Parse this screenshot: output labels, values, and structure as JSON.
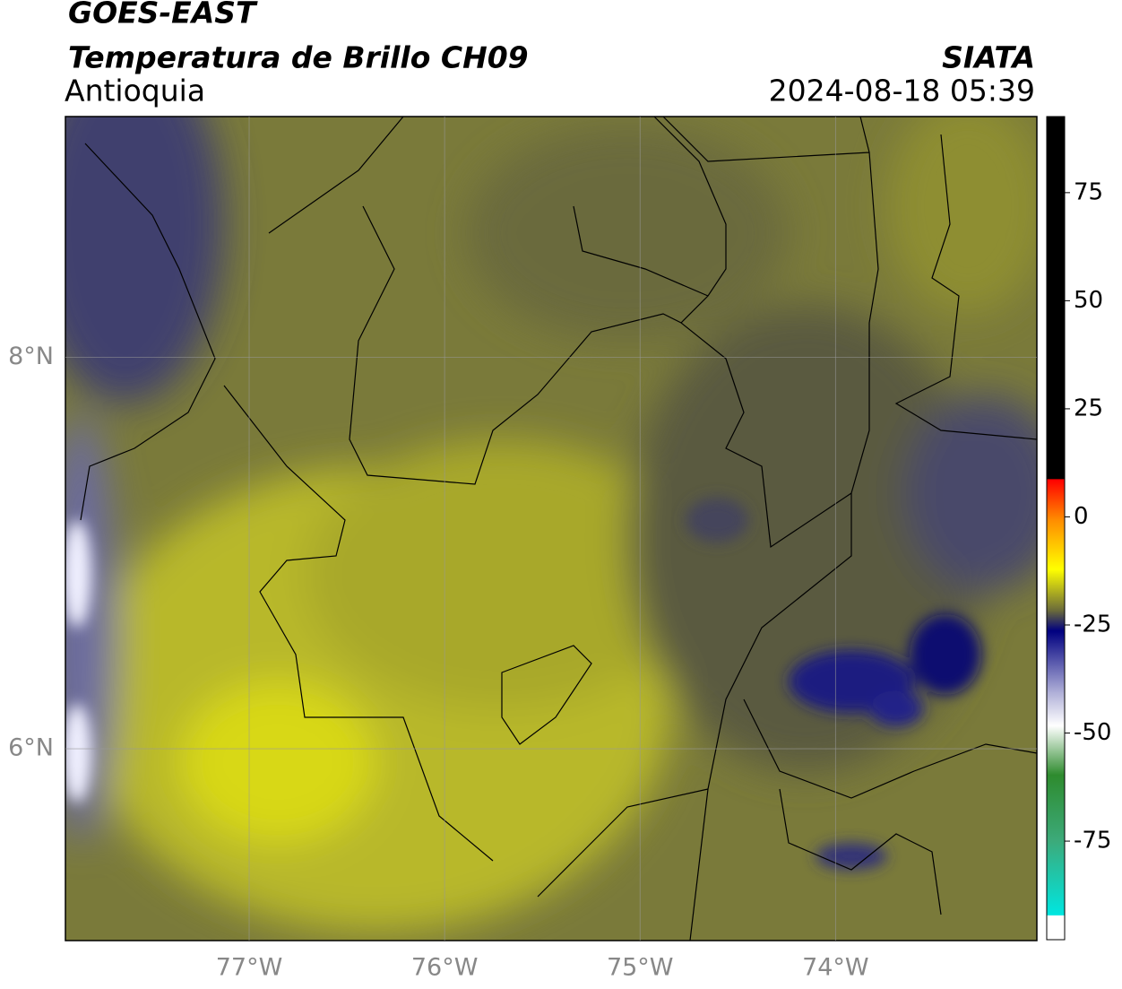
{
  "header": {
    "title": "GOES-EAST",
    "subtitle": "Temperatura de Brillo CH09",
    "region": "Antioquia",
    "source": "SIATA",
    "datetime": "2024-08-18 05:39"
  },
  "map": {
    "xlim": [
      -77.94,
      -72.97
    ],
    "ylim": [
      5.02,
      9.23
    ],
    "xticks": [
      {
        "value": -77,
        "label": "77°W"
      },
      {
        "value": -76,
        "label": "76°W"
      },
      {
        "value": -75,
        "label": "75°W"
      },
      {
        "value": -74,
        "label": "74°W"
      }
    ],
    "yticks": [
      {
        "value": 6,
        "label": "6°N"
      },
      {
        "value": 8,
        "label": "8°N"
      }
    ],
    "grid": true
  },
  "colorbar": {
    "lim": [
      -97.8,
      92.6
    ],
    "ticks": [
      75,
      50,
      25,
      0,
      -25,
      -50,
      -75
    ]
  }
}
